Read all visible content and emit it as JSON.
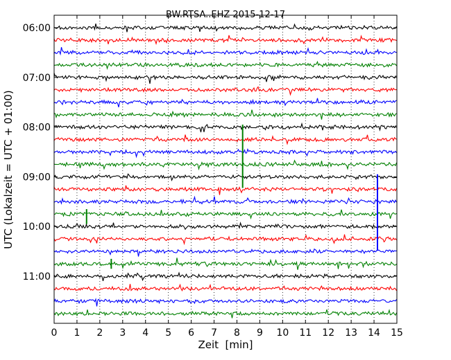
{
  "chart_data": {
    "type": "line",
    "title": "BW.RTSA..EHZ 2015-12-17",
    "xlabel": "Zeit  [min]",
    "ylabel": "UTC (Lokalzeit = UTC + 01:00)",
    "xlim": [
      0,
      15
    ],
    "x_ticks": [
      0,
      1,
      2,
      3,
      4,
      5,
      6,
      7,
      8,
      9,
      10,
      11,
      12,
      13,
      14,
      15
    ],
    "x_tick_labels": [
      "0",
      "1",
      "2",
      "3",
      "4",
      "5",
      "6",
      "7",
      "8",
      "9",
      "10",
      "11",
      "12",
      "13",
      "14",
      "15"
    ],
    "grid": "vertical dotted",
    "legend": "none",
    "line_colors": [
      "#000000",
      "#ff0000",
      "#0000ff",
      "#008000"
    ],
    "y_tick_labels": [
      "06:00",
      "07:00",
      "08:00",
      "09:00",
      "10:00",
      "11:00"
    ],
    "y_tick_trace_index": [
      0,
      4,
      8,
      12,
      16,
      20
    ],
    "series": [
      {
        "name": "06:00",
        "color": "#000000"
      },
      {
        "name": "06:15",
        "color": "#ff0000"
      },
      {
        "name": "06:30",
        "color": "#0000ff"
      },
      {
        "name": "06:45",
        "color": "#008000"
      },
      {
        "name": "07:00",
        "color": "#000000"
      },
      {
        "name": "07:15",
        "color": "#ff0000"
      },
      {
        "name": "07:30",
        "color": "#0000ff"
      },
      {
        "name": "07:45",
        "color": "#008000"
      },
      {
        "name": "08:00",
        "color": "#000000"
      },
      {
        "name": "08:15",
        "color": "#ff0000"
      },
      {
        "name": "08:30",
        "color": "#0000ff"
      },
      {
        "name": "08:45",
        "color": "#008000"
      },
      {
        "name": "09:00",
        "color": "#000000"
      },
      {
        "name": "09:15",
        "color": "#ff0000"
      },
      {
        "name": "09:30",
        "color": "#0000ff"
      },
      {
        "name": "09:45",
        "color": "#008000"
      },
      {
        "name": "10:00",
        "color": "#000000"
      },
      {
        "name": "10:15",
        "color": "#ff0000"
      },
      {
        "name": "10:30",
        "color": "#0000ff"
      },
      {
        "name": "10:45",
        "color": "#008000"
      },
      {
        "name": "11:00",
        "color": "#000000"
      },
      {
        "name": "11:15",
        "color": "#ff0000"
      },
      {
        "name": "11:30",
        "color": "#0000ff"
      },
      {
        "name": "11:45",
        "color": "#008000"
      }
    ],
    "spikes": [
      {
        "trace": 8,
        "x_min": 8.25,
        "extent_traces": 4.9,
        "color": "#008000"
      },
      {
        "trace": 12,
        "x_min": 14.15,
        "extent_traces": 5.9,
        "color": "#0000ff"
      },
      {
        "trace": 14.8,
        "x_min": 1.42,
        "extent_traces": 1.0,
        "color": "#008000"
      },
      {
        "trace": 18.8,
        "x_min": 2.5,
        "extent_traces": 0.6,
        "color": "#008000"
      }
    ]
  }
}
